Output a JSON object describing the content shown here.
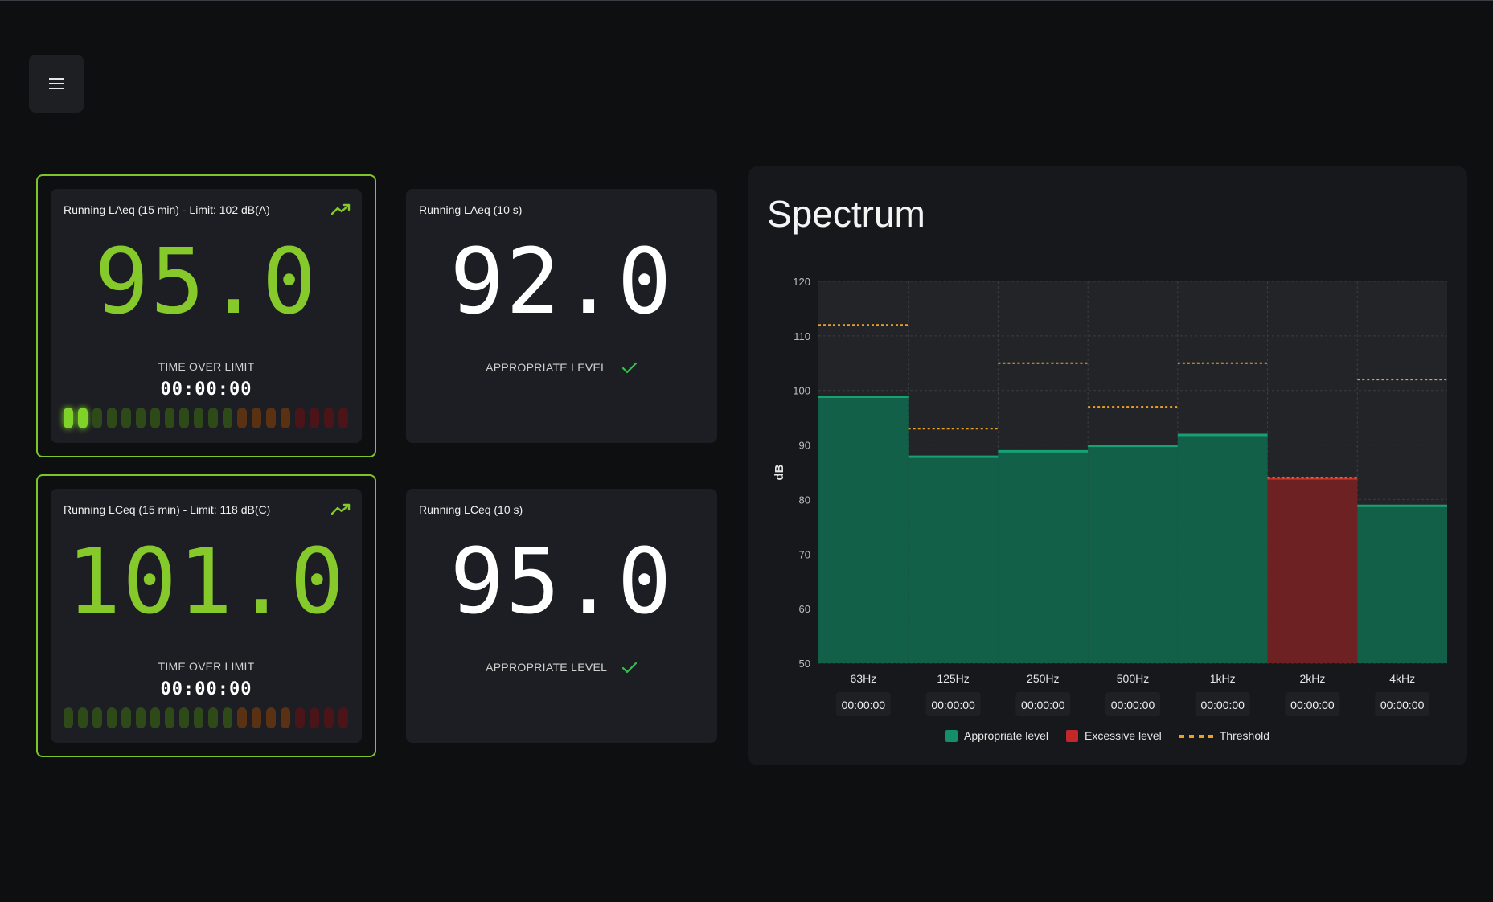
{
  "colors": {
    "accent_green": "#86c92b",
    "appropriate": "#126048",
    "appropriate_line": "#17a173",
    "excessive": "#6d2123",
    "excessive_line": "#c22a2c",
    "threshold": "#f0a020"
  },
  "menu": {
    "icon": "hamburger-icon"
  },
  "cards": {
    "laeq15": {
      "title": "Running LAeq (15 min) - Limit: 102 dB(A)",
      "value": "95.0",
      "over_label": "TIME OVER LIMIT",
      "over_time": "00:00:00",
      "meter_lit": 2,
      "meter_total": 20,
      "icon": "trending-up-icon"
    },
    "laeq10": {
      "title": "Running LAeq (10 s)",
      "value": "92.0",
      "status": "APPROPRIATE LEVEL",
      "icon": "check-icon"
    },
    "lceq15": {
      "title": "Running LCeq (15 min) - Limit: 118 dB(C)",
      "value": "101.0",
      "over_label": "TIME OVER LIMIT",
      "over_time": "00:00:00",
      "meter_lit": 0,
      "meter_total": 20,
      "icon": "trending-up-icon"
    },
    "lceq10": {
      "title": "Running LCeq (10 s)",
      "value": "95.0",
      "status": "APPROPRIATE LEVEL",
      "icon": "check-icon"
    }
  },
  "spectrum": {
    "title": "Spectrum",
    "legend": {
      "appropriate": "Appropriate level",
      "excessive": "Excessive level",
      "threshold": "Threshold"
    }
  },
  "chart_data": {
    "type": "bar",
    "ylabel": "dB",
    "ylim": [
      50,
      120
    ],
    "yticks": [
      50,
      60,
      70,
      80,
      90,
      100,
      110,
      120
    ],
    "categories": [
      "63Hz",
      "125Hz",
      "250Hz",
      "500Hz",
      "1kHz",
      "2kHz",
      "4kHz"
    ],
    "values": [
      99,
      88,
      89,
      90,
      92,
      84,
      79
    ],
    "thresholds": [
      112,
      93,
      105,
      97,
      105,
      84,
      102
    ],
    "excessive": [
      false,
      false,
      false,
      false,
      false,
      true,
      false
    ],
    "time_over": [
      "00:00:00",
      "00:00:00",
      "00:00:00",
      "00:00:00",
      "00:00:00",
      "00:00:00",
      "00:00:00"
    ],
    "grid": true,
    "legend_position": "bottom"
  }
}
